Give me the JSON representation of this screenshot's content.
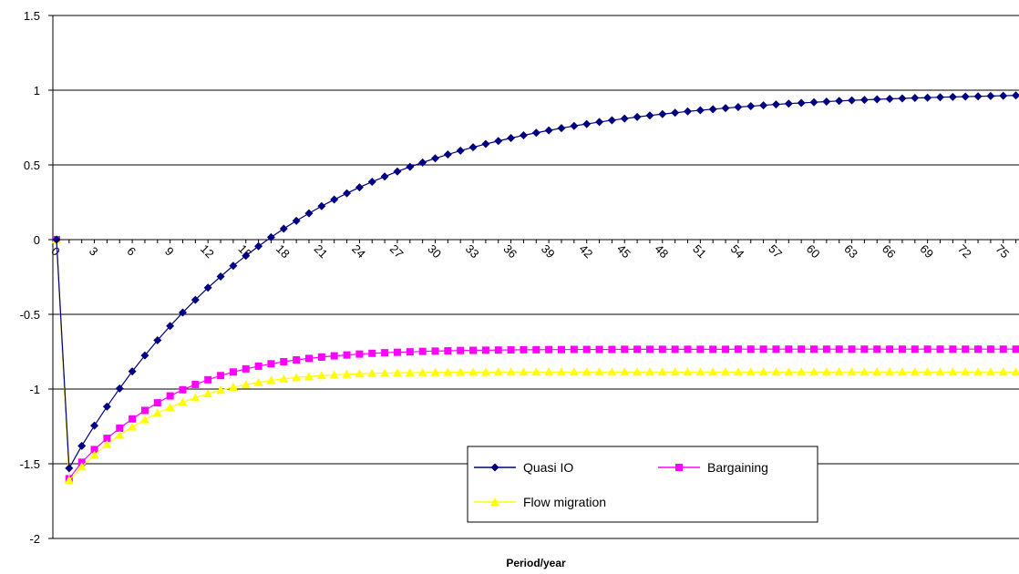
{
  "chart_data": {
    "type": "line",
    "title": "",
    "xlabel": "Period/year",
    "ylabel": "",
    "ylim": [
      -2,
      1.5
    ],
    "yticks": [
      -2,
      -1.5,
      -1,
      -0.5,
      0,
      0.5,
      1,
      1.5
    ],
    "ytick_labels": [
      "-2",
      "-1.5",
      "-1",
      "-0.5",
      "0",
      "0.5",
      "1",
      "1.5"
    ],
    "xlim": [
      0,
      76
    ],
    "xticks": [
      0,
      3,
      6,
      9,
      12,
      15,
      18,
      21,
      24,
      27,
      30,
      33,
      36,
      39,
      42,
      45,
      48,
      51,
      54,
      57,
      60,
      63,
      66,
      69,
      72,
      75
    ],
    "grid": "horizontal",
    "legend_position": "bottom-center",
    "series": [
      {
        "name": "Quasi IO",
        "color": "#000080",
        "marker": "diamond",
        "values": [
          0,
          -1.53,
          -1.38,
          -1.245,
          -1.117,
          -0.996,
          -0.882,
          -0.775,
          -0.674,
          -0.578,
          -0.488,
          -0.403,
          -0.322,
          -0.247,
          -0.175,
          -0.108,
          -0.044,
          0.016,
          0.073,
          0.126,
          0.176,
          0.224,
          0.268,
          0.31,
          0.35,
          0.387,
          0.422,
          0.456,
          0.487,
          0.516,
          0.544,
          0.57,
          0.595,
          0.618,
          0.64,
          0.66,
          0.68,
          0.698,
          0.715,
          0.731,
          0.746,
          0.761,
          0.774,
          0.787,
          0.799,
          0.81,
          0.821,
          0.831,
          0.84,
          0.849,
          0.858,
          0.866,
          0.873,
          0.88,
          0.887,
          0.893,
          0.899,
          0.905,
          0.91,
          0.915,
          0.919,
          0.924,
          0.928,
          0.932,
          0.935,
          0.939,
          0.942,
          0.945,
          0.948,
          0.95,
          0.953,
          0.955,
          0.957,
          0.959,
          0.961,
          0.963,
          0.965
        ]
      },
      {
        "name": "Bargaining",
        "color": "#FF00FF",
        "marker": "square",
        "values": [
          0,
          -1.6,
          -1.49,
          -1.405,
          -1.33,
          -1.262,
          -1.2,
          -1.143,
          -1.092,
          -1.046,
          -1.005,
          -0.969,
          -0.938,
          -0.91,
          -0.886,
          -0.865,
          -0.847,
          -0.831,
          -0.817,
          -0.805,
          -0.795,
          -0.786,
          -0.778,
          -0.772,
          -0.766,
          -0.761,
          -0.757,
          -0.754,
          -0.751,
          -0.748,
          -0.746,
          -0.744,
          -0.742,
          -0.741,
          -0.74,
          -0.739,
          -0.738,
          -0.737,
          -0.737,
          -0.736,
          -0.736,
          -0.735,
          -0.735,
          -0.735,
          -0.735,
          -0.734,
          -0.734,
          -0.734,
          -0.734,
          -0.734,
          -0.734,
          -0.734,
          -0.734,
          -0.734,
          -0.733,
          -0.733,
          -0.733,
          -0.733,
          -0.733,
          -0.733,
          -0.733,
          -0.733,
          -0.733,
          -0.733,
          -0.733,
          -0.733,
          -0.733,
          -0.733,
          -0.733,
          -0.733,
          -0.733,
          -0.733,
          -0.733,
          -0.733,
          -0.733,
          -0.733,
          -0.733
        ]
      },
      {
        "name": "Flow migration",
        "color": "#FFFF00",
        "marker": "triangle",
        "values": [
          0,
          -1.61,
          -1.52,
          -1.441,
          -1.371,
          -1.309,
          -1.254,
          -1.205,
          -1.161,
          -1.122,
          -1.088,
          -1.058,
          -1.031,
          -1.008,
          -0.988,
          -0.971,
          -0.956,
          -0.943,
          -0.932,
          -0.923,
          -0.916,
          -0.91,
          -0.905,
          -0.901,
          -0.898,
          -0.895,
          -0.893,
          -0.891,
          -0.89,
          -0.889,
          -0.888,
          -0.888,
          -0.887,
          -0.887,
          -0.887,
          -0.886,
          -0.886,
          -0.886,
          -0.886,
          -0.886,
          -0.886,
          -0.886,
          -0.886,
          -0.886,
          -0.886,
          -0.886,
          -0.886,
          -0.886,
          -0.886,
          -0.886,
          -0.886,
          -0.886,
          -0.886,
          -0.886,
          -0.886,
          -0.886,
          -0.886,
          -0.886,
          -0.886,
          -0.886,
          -0.886,
          -0.886,
          -0.886,
          -0.886,
          -0.886,
          -0.886,
          -0.886,
          -0.886,
          -0.886,
          -0.886,
          -0.886,
          -0.886,
          -0.886,
          -0.886,
          -0.886,
          -0.886,
          -0.886
        ]
      }
    ]
  }
}
